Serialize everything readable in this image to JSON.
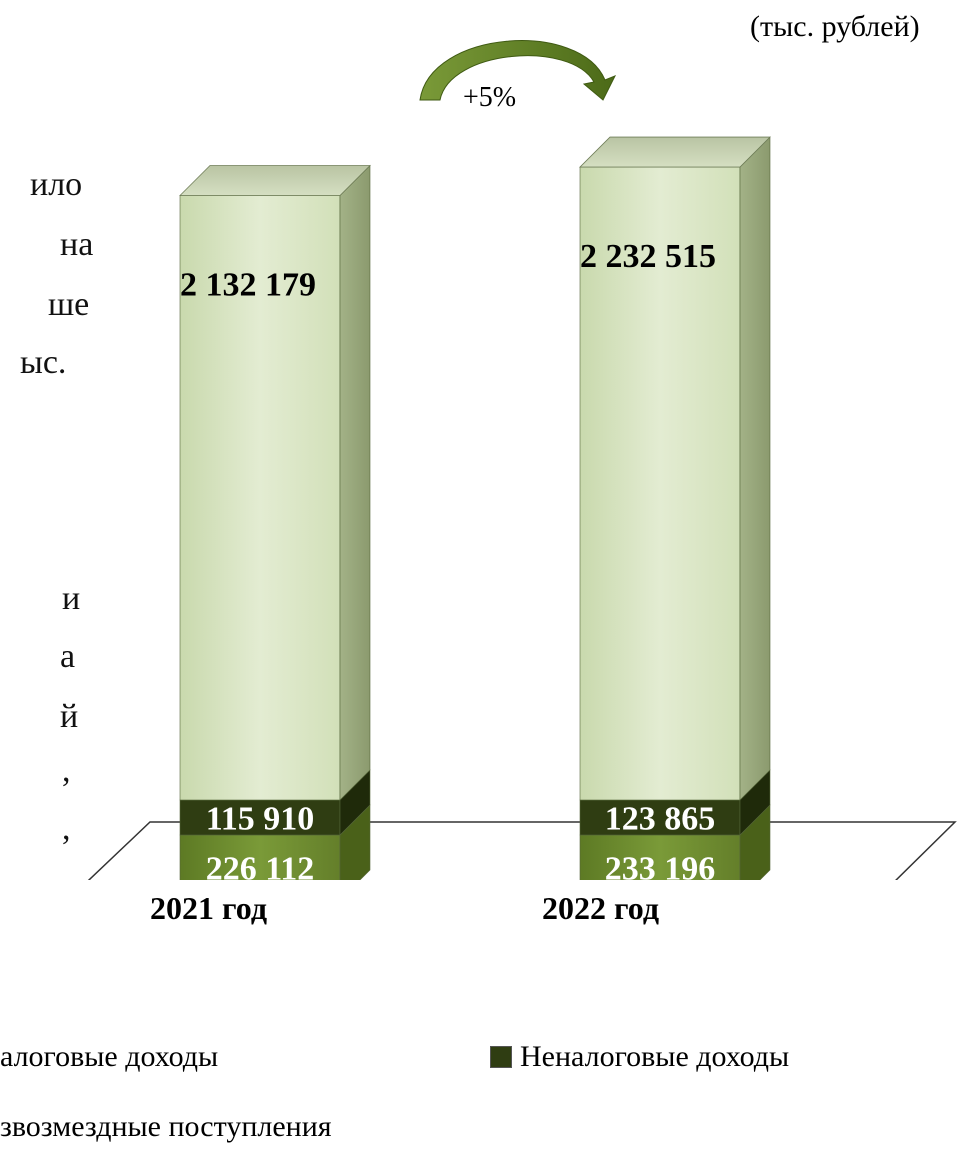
{
  "unit_label": "(тыс. рублей)",
  "growth_label": "+5%",
  "left_text_fragments": [
    "ило",
    "на",
    "ше",
    "ыс.",
    "и",
    "а",
    "й",
    ",",
    ","
  ],
  "colors": {
    "tax": "#6b8a2c",
    "nontax": "#2f3d12",
    "grants": "#d8e4c0",
    "arrow": "#5c7d22"
  },
  "chart_data": {
    "type": "bar",
    "stacked": true,
    "categories": [
      "2021 год",
      "2022 год"
    ],
    "series": [
      {
        "name": "Налоговые доходы",
        "values": [
          226112,
          233196
        ],
        "color_key": "tax"
      },
      {
        "name": "Неналоговые доходы",
        "values": [
          115910,
          123865
        ],
        "color_key": "nontax"
      },
      {
        "name": "Безвозмездные поступления",
        "values": [
          2132179,
          2232515
        ],
        "color_key": "grants"
      }
    ],
    "value_labels": [
      [
        "226 112",
        "233 196"
      ],
      [
        "115 910",
        "123 865"
      ],
      [
        "2 132 179",
        "2 232 515"
      ]
    ],
    "title": "",
    "xlabel": "",
    "ylabel": ""
  },
  "legend": {
    "items": [
      "алоговые доходы",
      "Неналоговые доходы",
      "звозмездные поступления"
    ]
  }
}
